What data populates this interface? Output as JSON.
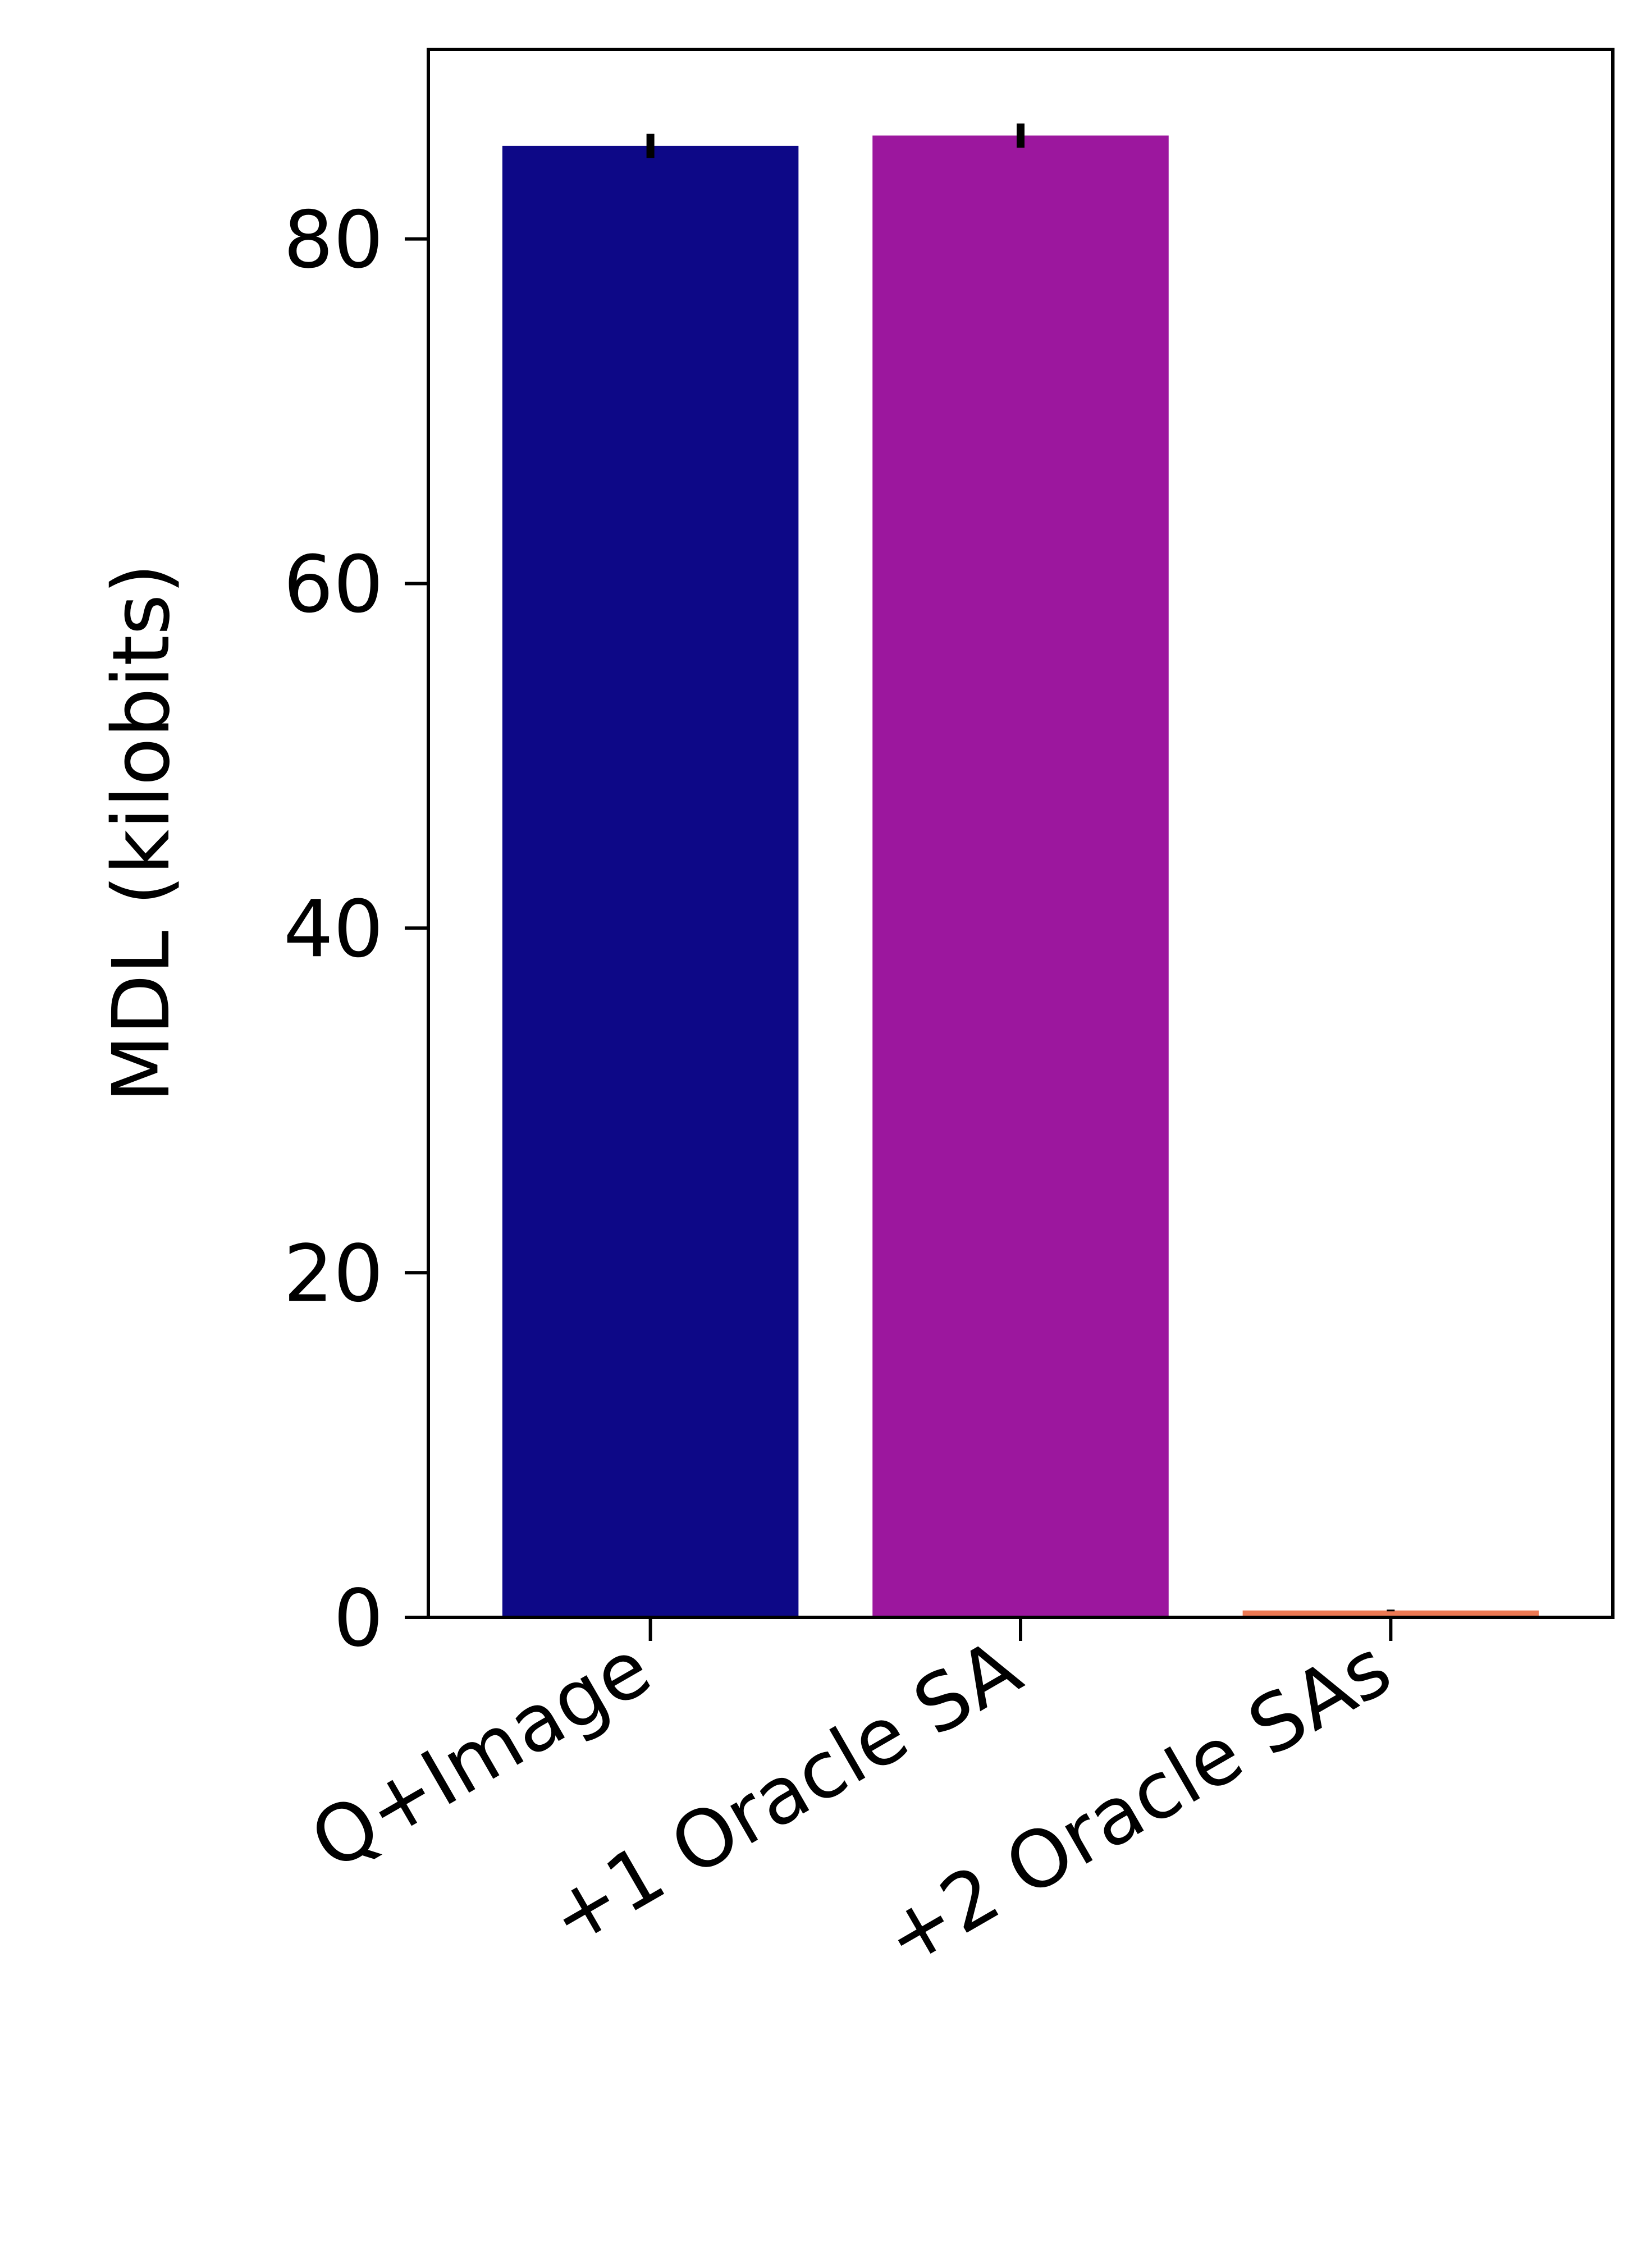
{
  "chart_data": {
    "type": "bar",
    "title": "",
    "xlabel": "",
    "ylabel": "MDL (kilobits)",
    "categories": [
      "Q+Image",
      "+1 Oracle SA",
      "+2 Oracle SAs"
    ],
    "values": [
      85.4,
      86.0,
      0.4
    ],
    "errors": [
      0.7,
      0.7,
      0.05
    ],
    "colors": [
      "#0d0887",
      "#9c179e",
      "#ed7953"
    ],
    "ylim": [
      0,
      91
    ],
    "yticks": [
      0,
      20,
      40,
      60,
      80
    ],
    "ytick_labels": [
      "0",
      "20",
      "40",
      "60",
      "80"
    ],
    "grid": false,
    "legend": "none"
  }
}
